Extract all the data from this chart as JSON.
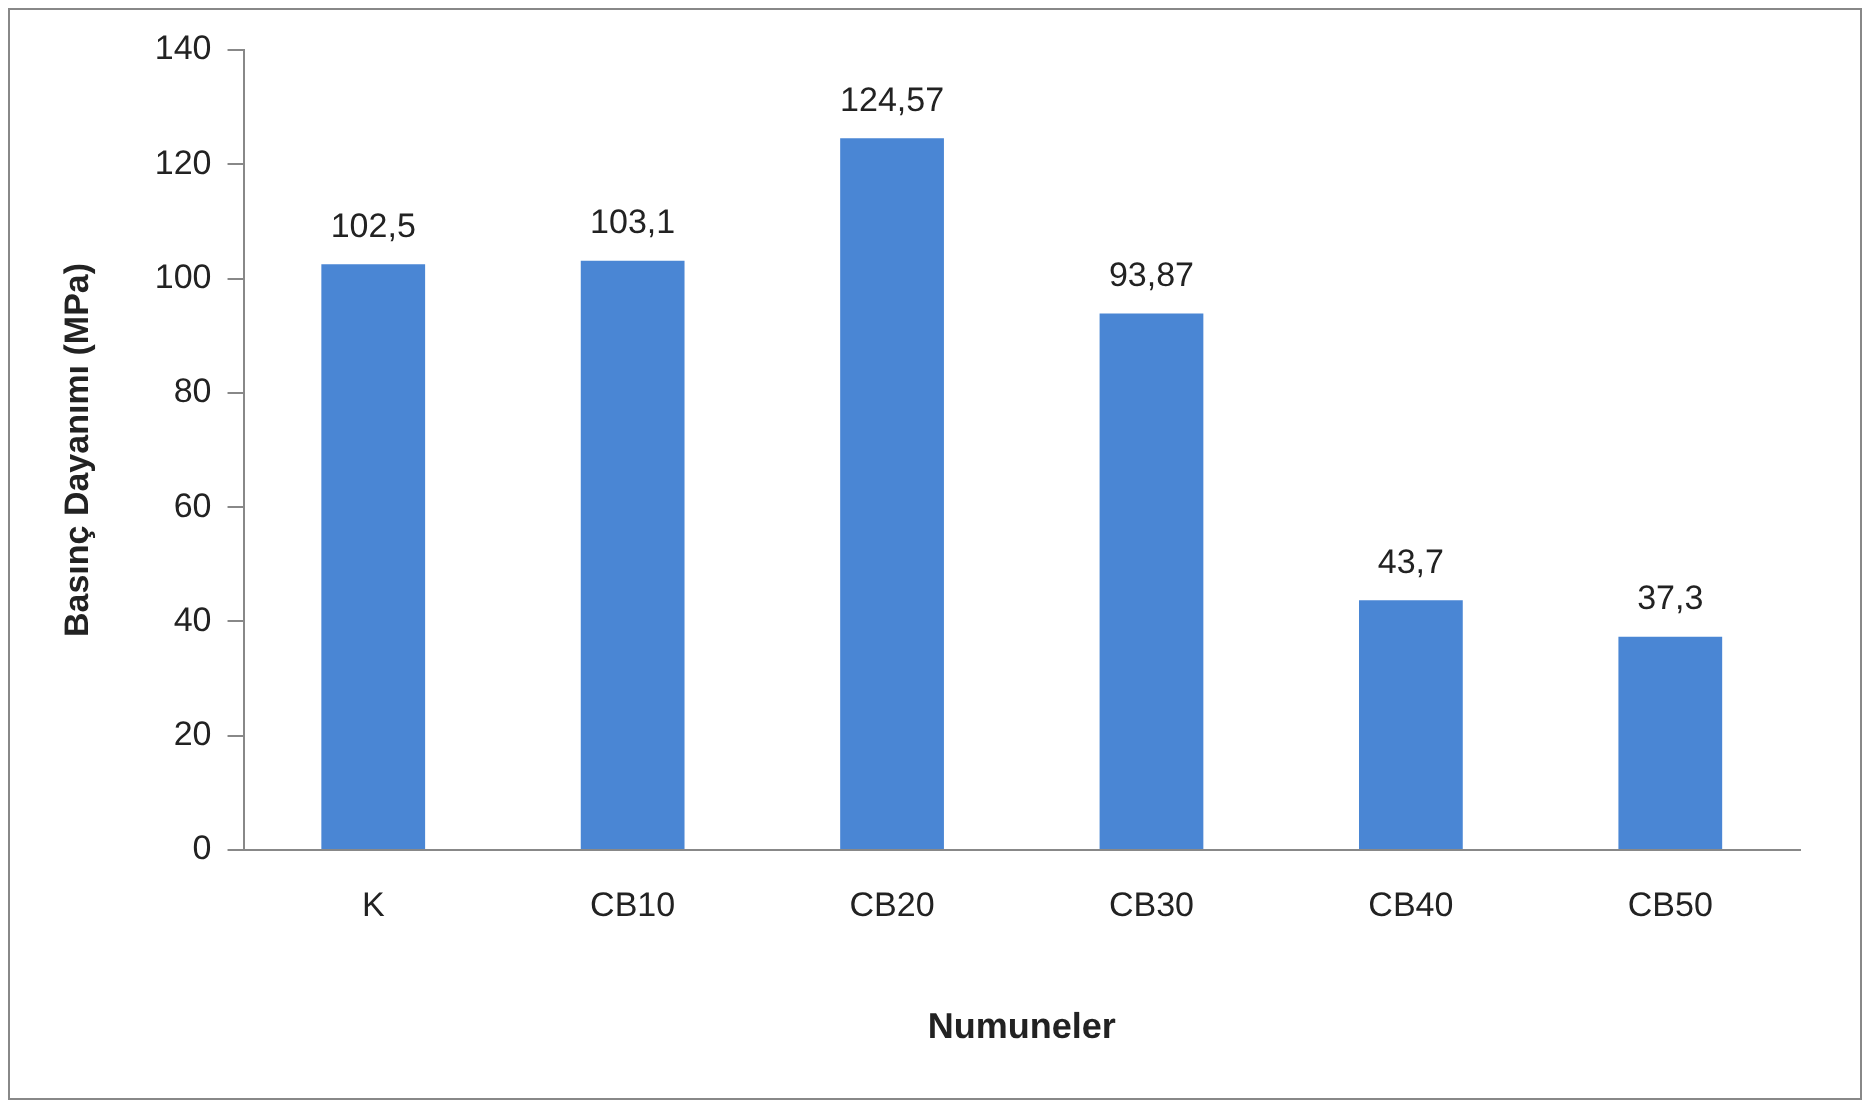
{
  "chart_data": {
    "type": "bar",
    "xlabel": "Numuneler",
    "ylabel": "Basınç Dayanımı (MPa)",
    "categories": [
      "K",
      "CB10",
      "CB20",
      "CB30",
      "CB40",
      "CB50"
    ],
    "values": [
      102.5,
      103.1,
      124.57,
      93.87,
      43.7,
      37.3
    ],
    "value_labels": [
      "102,5",
      "103,1",
      "124,57",
      "93,87",
      "43,7",
      "37,3"
    ],
    "color": "#4a86d4",
    "ylim": [
      0,
      140
    ],
    "yticks": [
      0,
      20,
      40,
      60,
      80,
      100,
      120,
      140
    ],
    "grid": false,
    "legend": false
  }
}
